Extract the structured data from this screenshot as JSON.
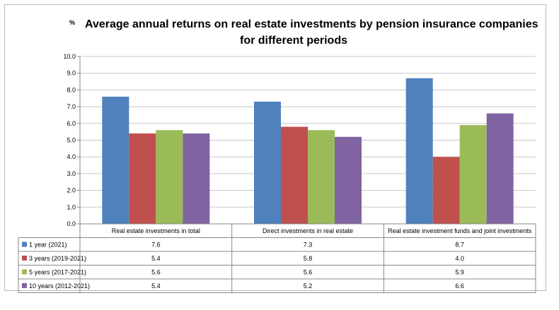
{
  "chart_data": {
    "type": "bar",
    "unit_label": "%",
    "title_line1": "Average annual returns on real estate investments by pension insurance companies",
    "title_line2": "for different periods",
    "categories": [
      "Real estate investments in total",
      "Direct investments in real estate",
      "Real estate investment funds and joint investments"
    ],
    "series": [
      {
        "name": "1 year (2021)",
        "color": "#4f81bd",
        "values": [
          7.6,
          7.3,
          8.7
        ]
      },
      {
        "name": "3 years (2019-2021)",
        "color": "#c0504d",
        "values": [
          5.4,
          5.8,
          4.0
        ]
      },
      {
        "name": "5 years (2017-2021)",
        "color": "#9bbb59",
        "values": [
          5.6,
          5.6,
          5.9
        ]
      },
      {
        "name": "10 years (2012-2021)",
        "color": "#8064a2",
        "values": [
          5.4,
          5.2,
          6.6
        ]
      }
    ],
    "y_ticks": [
      "0.0",
      "1.0",
      "2.0",
      "3.0",
      "4.0",
      "5.0",
      "6.0",
      "7.0",
      "8.0",
      "9.0",
      "10.0"
    ],
    "ylim": [
      0,
      10
    ],
    "grid": true,
    "legend_placement": "data-table-left",
    "table": [
      [
        "7.6",
        "7.3",
        "8.7"
      ],
      [
        "5.4",
        "5.8",
        "4.0"
      ],
      [
        "5.6",
        "5.6",
        "5.9"
      ],
      [
        "5.4",
        "5.2",
        "6.6"
      ]
    ]
  }
}
